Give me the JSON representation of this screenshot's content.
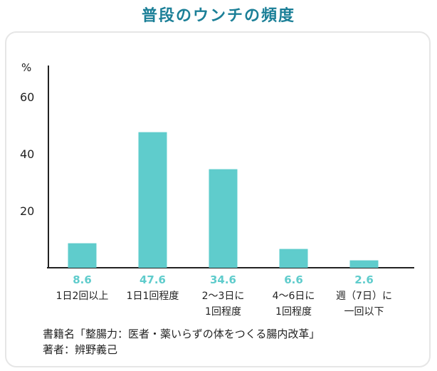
{
  "title": "普段のウンチの頻度",
  "colors": {
    "title": "#1b7f97",
    "bar": "#5fcccc",
    "value_label": "#5fcccc",
    "axis": "#222222"
  },
  "chart_data": {
    "type": "bar",
    "title": "普段のウンチの頻度",
    "ylabel": "%",
    "xlabel": "",
    "ylim": [
      0,
      68
    ],
    "yticks": [
      20,
      40,
      60
    ],
    "categories": [
      [
        "1日2回以上"
      ],
      [
        "1日1回程度"
      ],
      [
        "2〜3日に",
        "1回程度"
      ],
      [
        "4〜6日に",
        "1回程度"
      ],
      [
        "週（7日）に",
        "一回以下"
      ]
    ],
    "values": [
      8.6,
      47.6,
      34.6,
      6.6,
      2.6
    ],
    "value_labels": [
      "8.6",
      "47.6",
      "34.6",
      "6.6",
      "2.6"
    ],
    "grid": false,
    "legend": "none"
  },
  "source": {
    "line1": "書籍名「整腸力：医者・薬いらずの体をつくる腸内改革」",
    "line2": "著者：辨野義己"
  }
}
